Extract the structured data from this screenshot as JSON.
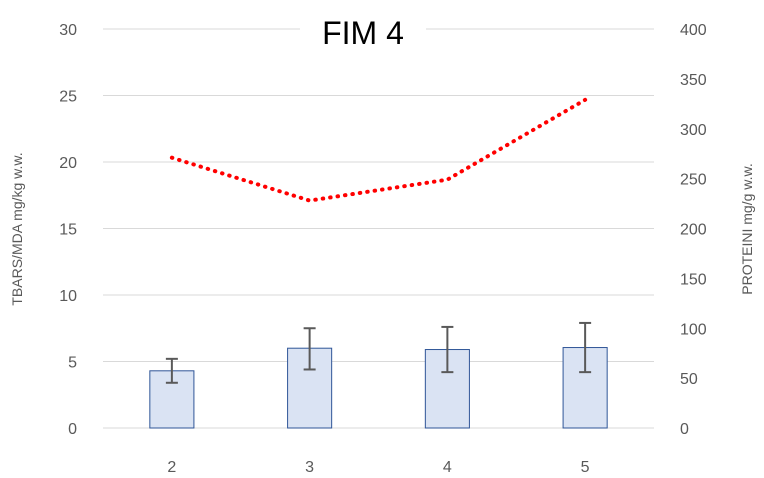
{
  "chart_data": {
    "type": "bar",
    "title": "FIM 4",
    "categories": [
      "2",
      "3",
      "4",
      "5"
    ],
    "y_left": {
      "label": "TBARS/MDA mg/kg w.w.",
      "range": [
        0,
        30
      ],
      "ticks": [
        "0",
        "5",
        "10",
        "15",
        "20",
        "25",
        "30"
      ]
    },
    "y_right": {
      "label": "PROTEINI mg/g w.w.",
      "range": [
        0,
        400
      ],
      "ticks": [
        "0",
        "50",
        "100",
        "150",
        "200",
        "250",
        "300",
        "350",
        "400"
      ]
    },
    "series": [
      {
        "type": "bar",
        "axis": "left",
        "values": [
          4.3,
          6.0,
          5.9,
          6.05
        ],
        "error_low": [
          3.4,
          4.4,
          4.2,
          4.2
        ],
        "error_high": [
          5.2,
          7.5,
          7.6,
          7.9
        ]
      },
      {
        "type": "line",
        "axis": "right",
        "style": "dotted",
        "values": [
          271,
          228,
          249,
          329
        ]
      }
    ],
    "colors": {
      "bar_fill": "#dae3f3",
      "bar_stroke": "#2f5597",
      "error_bar": "#595959",
      "line": "#ff0000",
      "grid": "#d9d9d9"
    },
    "grid": true,
    "legend": "none"
  }
}
